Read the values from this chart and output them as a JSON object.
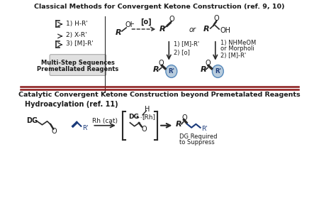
{
  "bg_color": "#ffffff",
  "title1": "Classical Methods for Convergent Ketone Construction (ref. 9, 10)",
  "title2": "Catalytic Convergent Ketone Construction beyond Premetalated Reagents",
  "subtitle2": "Hydroacylation (ref. 11)",
  "reagent1": "1) H-R'",
  "reagent2": "2) X-R'",
  "reagent3": "3) [M]-R'",
  "box_label1": "Multi-Step Sequences",
  "box_label2": "Premetallated Reagents",
  "step_left1": "1) [M]-R'",
  "step_left2": "2) [o]",
  "step_right1": "1) NHMeOM",
  "step_right2": "or Morpholi",
  "step_right3": "2) [M]-R'",
  "dg_required1": "DG Required",
  "dg_required2": "to Suppress",
  "rh_cat": "Rh (cat)",
  "or_text": "or",
  "dark_red": "#8B1A1A",
  "blue": "#1a3a7a",
  "light_blue": "#b8ccdd",
  "text_color": "#1a1a1a",
  "box_bg": "#e0e0e0",
  "line_color": "#2a2a2a",
  "o_text": "O",
  "oh_text": "OH",
  "r_text": "R",
  "rp_text": "R'",
  "dg_text": "DG",
  "h_text": "H",
  "rh_text": "[Rh]"
}
